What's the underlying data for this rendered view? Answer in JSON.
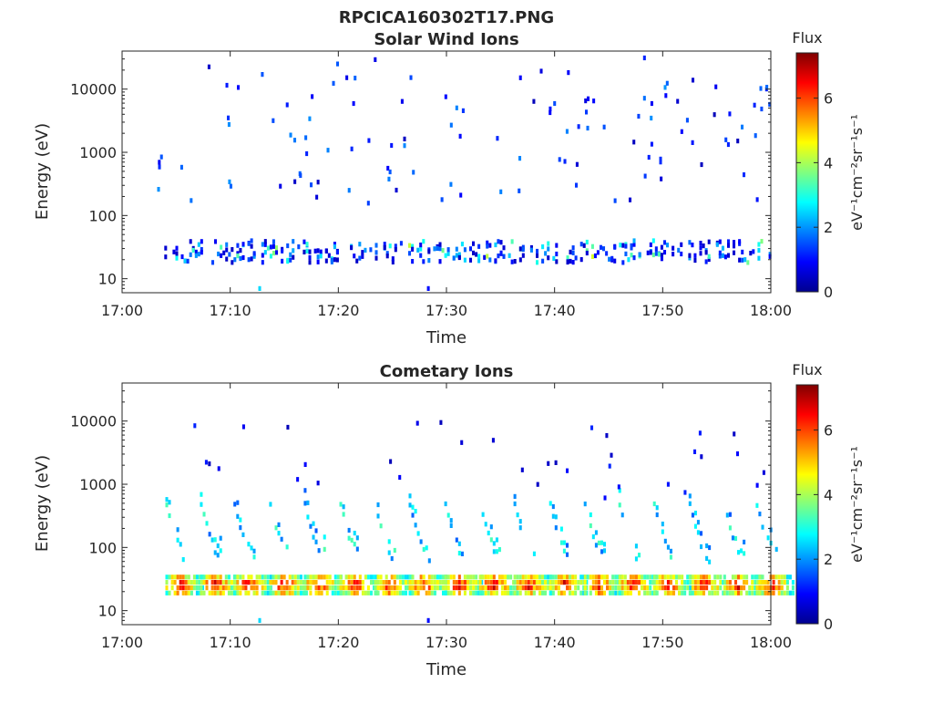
{
  "figure": {
    "title_line1": "RPCICA160302T17.PNG"
  },
  "colorbar": {
    "title": "Flux",
    "label": "eV⁻¹cm⁻²sr⁻¹s⁻¹",
    "min": 0,
    "max": 7.4,
    "ticks": [
      "0",
      "2",
      "4",
      "6"
    ],
    "tick_values": [
      0,
      2,
      4,
      6
    ],
    "colormap": "jet"
  },
  "chart_data": [
    {
      "type": "heatmap",
      "title": "Solar Wind Ions",
      "xlabel": "Time",
      "ylabel": "Energy (eV)",
      "x_range": [
        "17:00",
        "18:00"
      ],
      "x_range_min": [
        0,
        60
      ],
      "x_ticks": [
        "17:00",
        "17:10",
        "17:20",
        "17:30",
        "17:40",
        "17:50",
        "18:00"
      ],
      "y_scale": "log",
      "y_range": [
        6,
        40000
      ],
      "y_ticks": [
        "10",
        "100",
        "1000",
        "10000"
      ],
      "y_tick_values": [
        10,
        100,
        1000,
        10000
      ],
      "colorbar_label": "Flux",
      "description_bands": [
        {
          "energy_range": [
            18,
            40
          ],
          "flux_range": [
            0.5,
            4.5
          ],
          "x_start_min": 3.9,
          "x_end_min": 59.9
        }
      ]
    },
    {
      "type": "heatmap",
      "title": "Cometary Ions",
      "xlabel": "Time",
      "ylabel": "Energy (eV)",
      "x_range": [
        "17:00",
        "18:00"
      ],
      "x_range_min": [
        0,
        60
      ],
      "x_ticks": [
        "17:00",
        "17:10",
        "17:20",
        "17:30",
        "17:40",
        "17:50",
        "18:00"
      ],
      "y_scale": "log",
      "y_range": [
        6,
        40000
      ],
      "y_ticks": [
        "10",
        "100",
        "1000",
        "10000"
      ],
      "y_tick_values": [
        10,
        100,
        1000,
        10000
      ],
      "colorbar_label": "Flux",
      "burst_starts_min": [
        4.0,
        7.2,
        10.3,
        13.6,
        16.8,
        20.1,
        23.3,
        26.5,
        29.8,
        33.0,
        36.2,
        39.5,
        42.7,
        45.9,
        49.1,
        52.4,
        55.6,
        58.6
      ],
      "band_energy_range": [
        16,
        42
      ],
      "band_peak_flux": 7
    }
  ]
}
